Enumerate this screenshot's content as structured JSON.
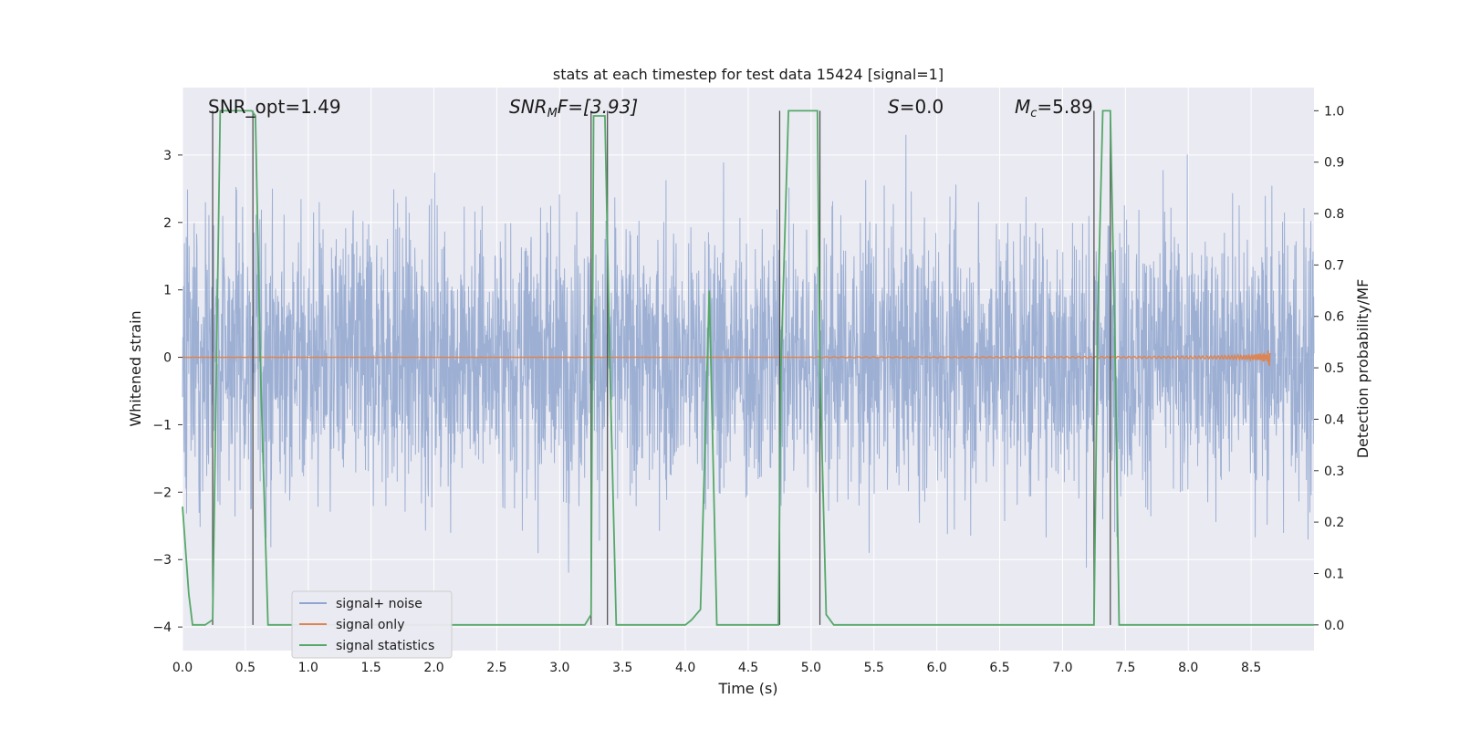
{
  "chart_data": {
    "type": "line",
    "title": "stats at each timestep for test data 15424 [signal=1]",
    "xlabel": "Time (s)",
    "ylabel": "Whitened strain",
    "ylabel_right": "Detection probability/MF",
    "xlim": [
      0.0,
      9.0
    ],
    "ylim": [
      -4.35,
      4.0
    ],
    "ylim_right": [
      -0.05,
      1.045
    ],
    "x_ticks": [
      "0.0",
      "0.5",
      "1.0",
      "1.5",
      "2.0",
      "2.5",
      "3.0",
      "3.5",
      "4.0",
      "4.5",
      "5.0",
      "5.5",
      "6.0",
      "6.5",
      "7.0",
      "7.5",
      "8.0",
      "8.5"
    ],
    "y_ticks": [
      "−4",
      "−3",
      "−2",
      "−1",
      "0",
      "1",
      "2",
      "3"
    ],
    "y_ticks_right": [
      "0.0",
      "0.1",
      "0.2",
      "0.3",
      "0.4",
      "0.5",
      "0.6",
      "0.7",
      "0.8",
      "0.9",
      "1.0"
    ],
    "grid": true,
    "legend_position": "bottom-left",
    "annotations": {
      "snr_opt": "SNR_opt=1.49",
      "snr_mf_base": "SNR",
      "snr_mf_sub": "M",
      "snr_mf_rest": "F=[3.93]",
      "s_var": "S",
      "s_rest": "=0.0",
      "mc_base": "M",
      "mc_sub": "c",
      "mc_rest": "=5.89"
    },
    "series": [
      {
        "name": "signal+ noise",
        "color": "#8fa6cf",
        "kind": "noise",
        "amplitude_rms": 1.0,
        "range": [
          -3.4,
          3.3
        ]
      },
      {
        "name": "signal only",
        "color": "#dd8452",
        "kind": "chirp",
        "peak_time": 8.65,
        "peak_amplitude": 0.15
      },
      {
        "name": "signal statistics",
        "color": "#55a868",
        "axis": "right",
        "x": [
          0.0,
          0.05,
          0.08,
          0.18,
          0.24,
          0.3,
          0.55,
          0.58,
          0.62,
          0.68,
          0.7,
          1.0,
          2.0,
          2.9,
          3.1,
          3.2,
          3.25,
          3.27,
          3.3,
          3.36,
          3.4,
          3.45,
          3.5,
          4.0,
          4.05,
          4.12,
          4.19,
          4.25,
          4.3,
          4.5,
          4.74,
          4.76,
          4.82,
          5.0,
          5.05,
          5.07,
          5.12,
          5.18,
          5.25,
          6.0,
          7.0,
          7.25,
          7.28,
          7.32,
          7.38,
          7.42,
          7.45,
          7.5,
          8.0,
          9.0
        ],
        "y": [
          0.23,
          0.06,
          0.0,
          0.0,
          0.01,
          1.0,
          1.0,
          0.99,
          0.5,
          0.0,
          0.0,
          0.0,
          0.0,
          0.0,
          0.0,
          0.0,
          0.02,
          0.99,
          0.99,
          0.99,
          0.5,
          0.0,
          0.0,
          0.0,
          0.01,
          0.03,
          0.65,
          0.0,
          0.0,
          0.0,
          0.0,
          0.5,
          1.0,
          1.0,
          1.0,
          0.5,
          0.02,
          0.0,
          0.0,
          0.0,
          0.0,
          0.0,
          0.6,
          1.0,
          1.0,
          0.5,
          0.0,
          0.0,
          0.0,
          0.0
        ]
      }
    ],
    "vertical_markers": [
      0.24,
      0.56,
      3.25,
      3.38,
      4.75,
      5.07,
      7.25,
      7.38
    ]
  }
}
